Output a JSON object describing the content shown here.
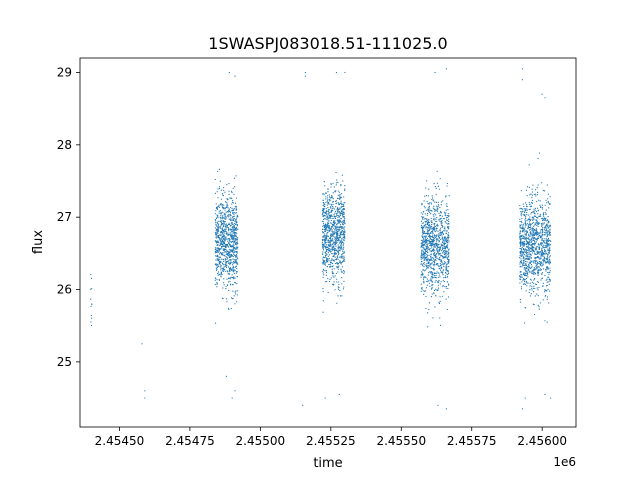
{
  "chart_data": {
    "type": "scatter",
    "title": "1SWASPJ083018.51-111025.0",
    "xlabel": "time",
    "ylabel": "flux",
    "x_offset_label": "1e6",
    "xlim": [
      2.45436,
      2.45612
    ],
    "ylim": [
      24.1,
      29.2
    ],
    "grid": false,
    "legend": "none",
    "x_ticks": [
      2.4545,
      2.45475,
      2.455,
      2.45525,
      2.4555,
      2.45575,
      2.456
    ],
    "x_tick_labels": [
      "2.45450",
      "2.45475",
      "2.45500",
      "2.45525",
      "2.45550",
      "2.45575",
      "2.45600"
    ],
    "y_ticks": [
      25,
      26,
      27,
      28,
      29
    ],
    "y_tick_labels": [
      "25",
      "26",
      "27",
      "28",
      "29"
    ],
    "marker_color": "#1f77b4",
    "series": [
      {
        "name": "",
        "observing_seasons": [
          {
            "x_range": [
              2.454397,
              2.454402
            ],
            "y_center": 25.9,
            "y_spread": 0.25,
            "point_count": 12
          },
          {
            "x_range": [
              2.45484,
              2.45492
            ],
            "y_center": 26.65,
            "y_spread": 0.32,
            "point_count": 900
          },
          {
            "x_range": [
              2.45522,
              2.4553
            ],
            "y_center": 26.75,
            "y_spread": 0.32,
            "point_count": 900
          },
          {
            "x_range": [
              2.45557,
              2.45567
            ],
            "y_center": 26.6,
            "y_spread": 0.33,
            "point_count": 1000
          },
          {
            "x_range": [
              2.45592,
              2.45603
            ],
            "y_center": 26.6,
            "y_spread": 0.34,
            "point_count": 1100
          }
        ],
        "outliers": [
          {
            "x": 2.45459,
            "y": 24.6
          },
          {
            "x": 2.45459,
            "y": 24.5
          },
          {
            "x": 2.45458,
            "y": 25.25
          },
          {
            "x": 2.45515,
            "y": 24.4
          },
          {
            "x": 2.45516,
            "y": 29.0
          },
          {
            "x": 2.45516,
            "y": 28.95
          },
          {
            "x": 2.45489,
            "y": 29.0
          },
          {
            "x": 2.45491,
            "y": 28.95
          },
          {
            "x": 2.45488,
            "y": 24.8
          },
          {
            "x": 2.4549,
            "y": 24.5
          },
          {
            "x": 2.45491,
            "y": 24.6
          },
          {
            "x": 2.45527,
            "y": 29.0
          },
          {
            "x": 2.45523,
            "y": 24.5
          },
          {
            "x": 2.45528,
            "y": 24.55
          },
          {
            "x": 2.4553,
            "y": 29.0
          },
          {
            "x": 2.45562,
            "y": 29.0
          },
          {
            "x": 2.45566,
            "y": 29.05
          },
          {
            "x": 2.45563,
            "y": 24.4
          },
          {
            "x": 2.45566,
            "y": 24.35
          },
          {
            "x": 2.45593,
            "y": 29.05
          },
          {
            "x": 2.45593,
            "y": 28.9
          },
          {
            "x": 2.45593,
            "y": 24.35
          },
          {
            "x": 2.45594,
            "y": 24.5
          },
          {
            "x": 2.456,
            "y": 28.7
          },
          {
            "x": 2.45601,
            "y": 28.65
          },
          {
            "x": 2.45601,
            "y": 24.55
          },
          {
            "x": 2.45603,
            "y": 24.5
          }
        ]
      }
    ]
  }
}
